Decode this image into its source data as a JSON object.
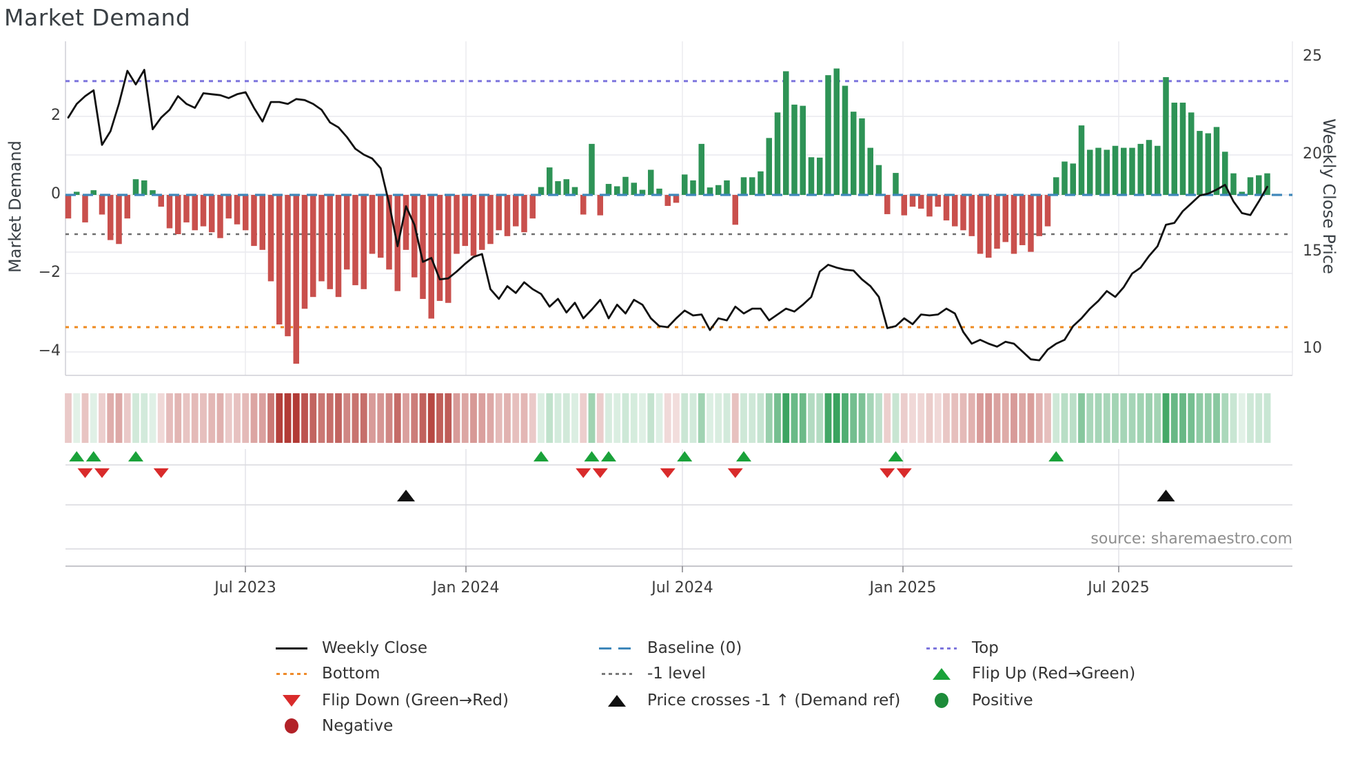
{
  "title": "Market Demand",
  "source_text": "source: sharemaestro.com",
  "left_axis": {
    "label": "Market Demand",
    "ticks": [
      "2",
      "0",
      "−2",
      "−4"
    ]
  },
  "right_axis": {
    "label": "Weekly Close Price",
    "ticks": [
      "25",
      "20",
      "15",
      "10"
    ]
  },
  "x_axis": {
    "ticks": [
      "Jul 2023",
      "Jan 2024",
      "Jul 2024",
      "Jan 2025",
      "Jul 2025"
    ]
  },
  "legend": {
    "items": [
      {
        "label": "Weekly Close",
        "swatch": "black-line"
      },
      {
        "label": "Bottom",
        "swatch": "orange-dotted"
      },
      {
        "label": "Flip Down (Green→Red)",
        "swatch": "red-triangle-down"
      },
      {
        "label": "Negative",
        "swatch": "dark-red-circle"
      },
      {
        "label": "Baseline (0)",
        "swatch": "blue-dashed"
      },
      {
        "label": "-1 level",
        "swatch": "gray-dotted"
      },
      {
        "label": "Price crosses -1 ↑ (Demand ref)",
        "swatch": "black-triangle-up"
      },
      {
        "label": "Top",
        "swatch": "purple-dotted"
      },
      {
        "label": "Flip Up (Red→Green)",
        "swatch": "green-triangle-up"
      },
      {
        "label": "Positive",
        "swatch": "green-circle"
      }
    ]
  },
  "colors": {
    "bar_positive": "#2e9356",
    "bar_negative": "#c9504d",
    "price_line": "#111111",
    "baseline": "#3f87ba",
    "top_line": "#7d75dd",
    "minus_one_line": "#6e6e6e",
    "bottom_line": "#ee8a1f",
    "flip_up": "#1aa23a",
    "flip_down": "#d92b2b",
    "price_cross": "#111111",
    "heat_green": [
      47,
      158,
      87
    ],
    "heat_red": [
      178,
      59,
      54
    ],
    "grid": "#e9e9ee",
    "panel_line": "#d9d9de",
    "axis_line": "#b3b3ba"
  },
  "chart_data": {
    "type": "bar",
    "title": "Market Demand",
    "n_weeks": 143,
    "x_tick_labels": [
      "Jul 2023",
      "Jan 2024",
      "Jul 2024",
      "Jan 2025",
      "Jul 2025"
    ],
    "xlabel": "",
    "ylabel": "Market Demand",
    "ylabel_right": "Weekly Close Price",
    "left_yticks": [
      2,
      0,
      -2,
      -4
    ],
    "right_yticks": [
      25,
      20,
      15,
      10
    ],
    "left_ylim": [
      -4.6,
      3.9
    ],
    "right_ylim": [
      8.7,
      25.8
    ],
    "grid": true,
    "legend_position": "bottom",
    "reference_lines": {
      "top": 2.9,
      "baseline": 0,
      "minus_one": -1,
      "bottom": -3.35
    },
    "series": [
      {
        "name": "Market Demand",
        "type": "bar",
        "axis": "left",
        "values": [
          -0.6,
          0.08,
          -0.7,
          0.12,
          -0.5,
          -1.15,
          -1.25,
          -0.6,
          0.4,
          0.37,
          0.12,
          -0.3,
          -0.85,
          -1.0,
          -0.7,
          -0.9,
          -0.8,
          -0.95,
          -1.1,
          -0.6,
          -0.75,
          -0.9,
          -1.3,
          -1.4,
          -2.2,
          -3.3,
          -3.6,
          -4.3,
          -2.9,
          -2.6,
          -2.2,
          -2.4,
          -2.6,
          -1.9,
          -2.3,
          -2.4,
          -1.5,
          -1.6,
          -1.9,
          -2.45,
          -1.4,
          -2.1,
          -2.65,
          -3.15,
          -2.7,
          -2.75,
          -1.5,
          -1.3,
          -1.55,
          -1.4,
          -1.25,
          -0.9,
          -1.05,
          -0.8,
          -0.95,
          -0.6,
          0.2,
          0.7,
          0.35,
          0.4,
          0.2,
          -0.5,
          1.3,
          -0.52,
          0.28,
          0.22,
          0.46,
          0.31,
          0.13,
          0.64,
          0.16,
          -0.28,
          -0.2,
          0.52,
          0.37,
          1.3,
          0.19,
          0.25,
          0.37,
          -0.76,
          0.45,
          0.45,
          0.6,
          1.45,
          2.1,
          3.15,
          2.3,
          2.27,
          0.96,
          0.95,
          3.05,
          3.22,
          2.78,
          2.12,
          1.95,
          1.2,
          0.76,
          -0.49,
          0.56,
          -0.52,
          -0.3,
          -0.35,
          -0.55,
          -0.3,
          -0.65,
          -0.8,
          -0.9,
          -1.05,
          -1.5,
          -1.6,
          -1.37,
          -1.2,
          -1.5,
          -1.28,
          -1.45,
          -1.05,
          -0.8,
          0.45,
          0.85,
          0.8,
          1.77,
          1.15,
          1.2,
          1.15,
          1.25,
          1.2,
          1.2,
          1.3,
          1.4,
          1.25,
          3.0,
          2.35,
          2.35,
          2.1,
          1.63,
          1.57,
          1.73,
          1.1,
          0.55,
          0.08,
          0.45,
          0.5,
          0.55
        ]
      },
      {
        "name": "Weekly Close",
        "type": "line",
        "axis": "right",
        "values": [
          21.9,
          22.6,
          23.0,
          23.3,
          20.5,
          21.2,
          22.6,
          24.3,
          23.6,
          24.35,
          21.3,
          21.9,
          22.3,
          23.0,
          22.6,
          22.4,
          23.15,
          23.1,
          23.05,
          22.9,
          23.1,
          23.2,
          22.4,
          21.7,
          22.7,
          22.7,
          22.6,
          22.85,
          22.8,
          22.6,
          22.3,
          21.65,
          21.4,
          20.9,
          20.3,
          20.0,
          19.8,
          19.3,
          17.5,
          15.3,
          17.35,
          16.4,
          14.5,
          14.7,
          13.6,
          13.65,
          14.0,
          14.4,
          14.75,
          14.9,
          13.1,
          12.6,
          13.25,
          12.9,
          13.45,
          13.1,
          12.85,
          12.2,
          12.6,
          11.9,
          12.4,
          11.6,
          12.05,
          12.55,
          11.6,
          12.3,
          11.85,
          12.55,
          12.3,
          11.6,
          11.2,
          11.15,
          11.6,
          12.0,
          11.75,
          11.8,
          11.0,
          11.6,
          11.5,
          12.2,
          11.85,
          12.1,
          12.1,
          11.5,
          11.8,
          12.1,
          11.95,
          12.3,
          12.7,
          14.0,
          14.35,
          14.2,
          14.1,
          14.05,
          13.6,
          13.25,
          12.7,
          11.1,
          11.2,
          11.6,
          11.3,
          11.8,
          11.75,
          11.8,
          12.1,
          11.85,
          10.9,
          10.3,
          10.5,
          10.3,
          10.15,
          10.4,
          10.3,
          9.9,
          9.5,
          9.45,
          10.0,
          10.3,
          10.5,
          11.2,
          11.6,
          12.1,
          12.5,
          13.0,
          12.7,
          13.2,
          13.9,
          14.2,
          14.8,
          15.3,
          16.4,
          16.5,
          17.1,
          17.5,
          17.9,
          18.0,
          18.2,
          18.45,
          17.6,
          17.0,
          16.9,
          17.6,
          18.35
        ]
      }
    ],
    "markers": {
      "flip_up_weeks": [
        1,
        3,
        8,
        56,
        62,
        64,
        73,
        80,
        98,
        117
      ],
      "flip_down_weeks": [
        2,
        4,
        11,
        61,
        63,
        71,
        79,
        97,
        99
      ],
      "price_cross_weeks": [
        40,
        130
      ]
    },
    "heatmap_strip": {
      "description": "weekly color band: red = negative demand, green = positive demand, intensity scales with magnitude"
    }
  }
}
